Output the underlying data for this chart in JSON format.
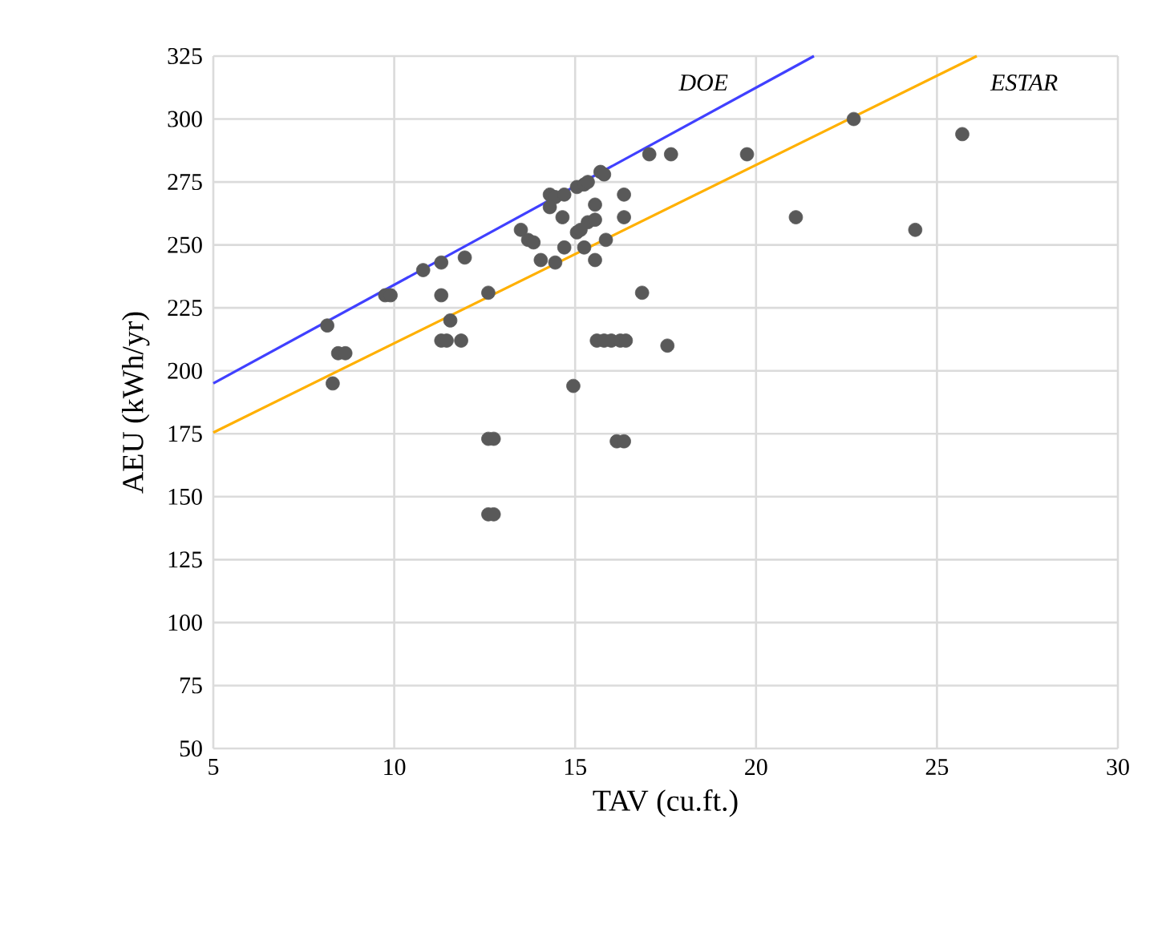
{
  "chart_data": {
    "type": "scatter",
    "xlabel": "TAV (cu.ft.)",
    "ylabel": "AEU (kWh/yr)",
    "xlim": [
      5,
      30
    ],
    "ylim": [
      50,
      325
    ],
    "xticks": [
      5,
      10,
      15,
      20,
      25,
      30
    ],
    "yticks": [
      50,
      75,
      100,
      125,
      150,
      175,
      200,
      225,
      250,
      275,
      300,
      325
    ],
    "grid": true,
    "marker": "circle",
    "series": [
      {
        "type": "scatter",
        "color": "#595959",
        "x": [
          8.15,
          8.3,
          8.45,
          8.65,
          9.75,
          9.9,
          10.8,
          11.3,
          11.3,
          11.3,
          11.45,
          11.55,
          11.85,
          11.95,
          12.6,
          12.6,
          12.75,
          12.6,
          12.75,
          13.5,
          13.7,
          13.85,
          14.05,
          14.3,
          14.45,
          14.3,
          14.45,
          14.65,
          14.7,
          14.7,
          14.95,
          15.05,
          15.25,
          15.35,
          15.05,
          15.15,
          15.25,
          15.35,
          15.55,
          15.55,
          15.55,
          15.7,
          15.8,
          15.85,
          15.6,
          15.8,
          16.0,
          16.25,
          16.4,
          16.15,
          16.35,
          16.35,
          16.35,
          16.85,
          17.05,
          17.65,
          17.55,
          19.75,
          21.1,
          22.7,
          24.4,
          25.7
        ],
        "values": [
          218,
          195,
          207,
          207,
          230,
          230,
          240,
          243,
          230,
          212,
          212,
          220,
          212,
          245,
          231,
          173,
          173,
          143,
          143,
          256,
          252,
          251,
          244,
          270,
          269,
          265,
          243,
          261,
          249,
          270,
          194,
          273,
          274,
          275,
          255,
          256,
          249,
          259,
          260,
          266,
          244,
          279,
          278,
          252,
          212,
          212,
          212,
          212,
          212,
          172,
          172,
          270,
          261,
          231,
          286,
          286,
          210,
          286,
          261,
          300,
          256,
          294
        ]
      },
      {
        "type": "line",
        "marker": "none",
        "name": "DOE",
        "color": "#4040ff",
        "x": [
          5,
          21.6
        ],
        "values": [
          195,
          325
        ]
      },
      {
        "type": "line",
        "marker": "none",
        "name": "ESTAR",
        "color": "#ffb000",
        "x": [
          5,
          26.1
        ],
        "values": [
          175.5,
          325
        ]
      }
    ]
  }
}
